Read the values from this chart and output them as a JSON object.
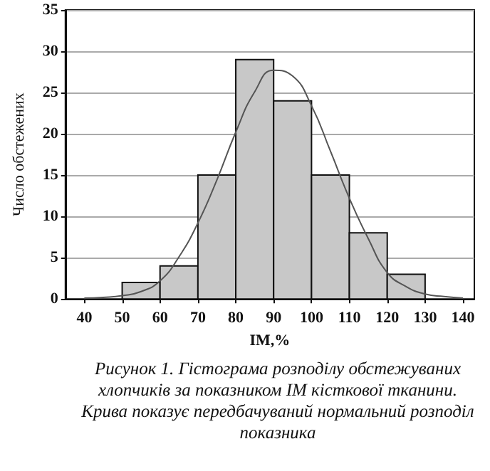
{
  "chart_data": {
    "type": "histogram",
    "xlabel": "IM,%",
    "ylabel": "Число обстежених",
    "annotations": [
      "Рисунок 1. Гістограма розподілу обстежуваних хлопчиків за показником ІМ кісткової тканини. Крива показує передбачуваний нормальний розподіл показника"
    ],
    "series": [
      {
        "color": "#c8c8c8",
        "bins": [
          50,
          60,
          70,
          80,
          90,
          100,
          110,
          120,
          130
        ],
        "values": [
          2,
          4,
          15,
          29,
          24,
          15,
          8,
          3
        ]
      },
      {
        "type": "line",
        "color": "#555555",
        "marker": "none",
        "x": [
          40,
          45,
          50,
          55,
          60,
          65,
          70,
          75,
          80,
          85,
          90,
          95,
          100,
          105,
          110,
          115,
          120,
          125,
          130,
          135,
          140
        ],
        "values": [
          0.1,
          0.2,
          0.4,
          0.9,
          2.2,
          5.1,
          9.2,
          14.4,
          20.2,
          25.1,
          27.7,
          27.0,
          23.4,
          17.9,
          12.2,
          7.3,
          3.2,
          1.5,
          0.6,
          0.3,
          0.1
        ]
      }
    ],
    "xlim": [
      35,
      143
    ],
    "xticks": [
      40,
      50,
      60,
      70,
      80,
      90,
      100,
      110,
      120,
      130,
      140
    ],
    "ylim": [
      0,
      35
    ],
    "yticks": [
      0,
      5,
      10,
      15,
      20,
      25,
      30,
      35
    ],
    "grid": "y"
  }
}
